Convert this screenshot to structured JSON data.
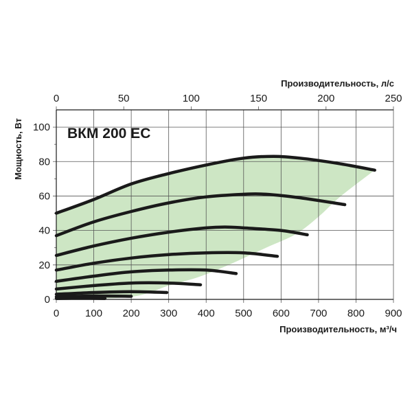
{
  "chart_data": {
    "type": "line",
    "title": "ВКМ 200 ЕС",
    "xlabel_bottom": "Производительность, м³/ч",
    "xlabel_top": "Производительность, л/с",
    "ylabel": "Мощность, Вт",
    "xlim": [
      0,
      900
    ],
    "ylim": [
      0,
      110
    ],
    "x_top_lim": [
      0,
      250
    ],
    "x_ticks": [
      "0",
      "100",
      "200",
      "300",
      "400",
      "500",
      "600",
      "700",
      "800",
      "900"
    ],
    "x_top_ticks": [
      "0",
      "50",
      "100",
      "150",
      "200",
      "250"
    ],
    "y_ticks": [
      "0",
      "20",
      "40",
      "60",
      "80",
      "100"
    ],
    "grid": true,
    "colors": {
      "area": "#cde6c4",
      "line": "#1a1a1a",
      "grid": "#555555"
    },
    "operating_area": {
      "upper": [
        [
          0,
          50
        ],
        [
          100,
          58
        ],
        [
          200,
          67
        ],
        [
          300,
          73
        ],
        [
          400,
          78
        ],
        [
          500,
          82
        ],
        [
          580,
          83
        ],
        [
          650,
          82
        ],
        [
          750,
          79
        ],
        [
          850,
          75
        ]
      ],
      "lower": [
        [
          850,
          75
        ],
        [
          760,
          60
        ],
        [
          700,
          48
        ],
        [
          640,
          38
        ],
        [
          560,
          30
        ],
        [
          460,
          20
        ],
        [
          380,
          13
        ],
        [
          300,
          8
        ],
        [
          250,
          4
        ],
        [
          200,
          1.5
        ],
        [
          120,
          0.5
        ],
        [
          0,
          0
        ]
      ]
    },
    "series": [
      {
        "x": [
          0,
          100,
          200,
          300,
          400,
          500,
          580,
          650,
          750,
          850
        ],
        "values": [
          50,
          58,
          67,
          73,
          78,
          82,
          83,
          82,
          79,
          75
        ]
      },
      {
        "x": [
          0,
          100,
          200,
          300,
          400,
          500,
          560,
          650,
          770
        ],
        "values": [
          37,
          45,
          51,
          56,
          59.5,
          61,
          61,
          59,
          55
        ]
      },
      {
        "x": [
          0,
          100,
          200,
          300,
          400,
          450,
          500,
          600,
          670
        ],
        "values": [
          25.5,
          31,
          35.5,
          39,
          41.5,
          42,
          41.5,
          40,
          37.5
        ]
      },
      {
        "x": [
          0,
          100,
          200,
          300,
          400,
          500,
          590
        ],
        "values": [
          17,
          21,
          24,
          26,
          27,
          27,
          25
        ]
      },
      {
        "x": [
          0,
          100,
          200,
          300,
          400,
          480
        ],
        "values": [
          10.5,
          13.5,
          16,
          17,
          17,
          15
        ]
      },
      {
        "x": [
          0,
          100,
          200,
          300,
          385
        ],
        "values": [
          6,
          8,
          9.5,
          9.5,
          8.5
        ]
      },
      {
        "x": [
          0,
          100,
          200,
          295
        ],
        "values": [
          3,
          4,
          4.5,
          4
        ]
      },
      {
        "x": [
          0,
          100,
          200
        ],
        "values": [
          1.5,
          2,
          1.8
        ]
      },
      {
        "x": [
          0,
          60,
          130
        ],
        "values": [
          0.5,
          0.6,
          0.5
        ]
      }
    ]
  }
}
